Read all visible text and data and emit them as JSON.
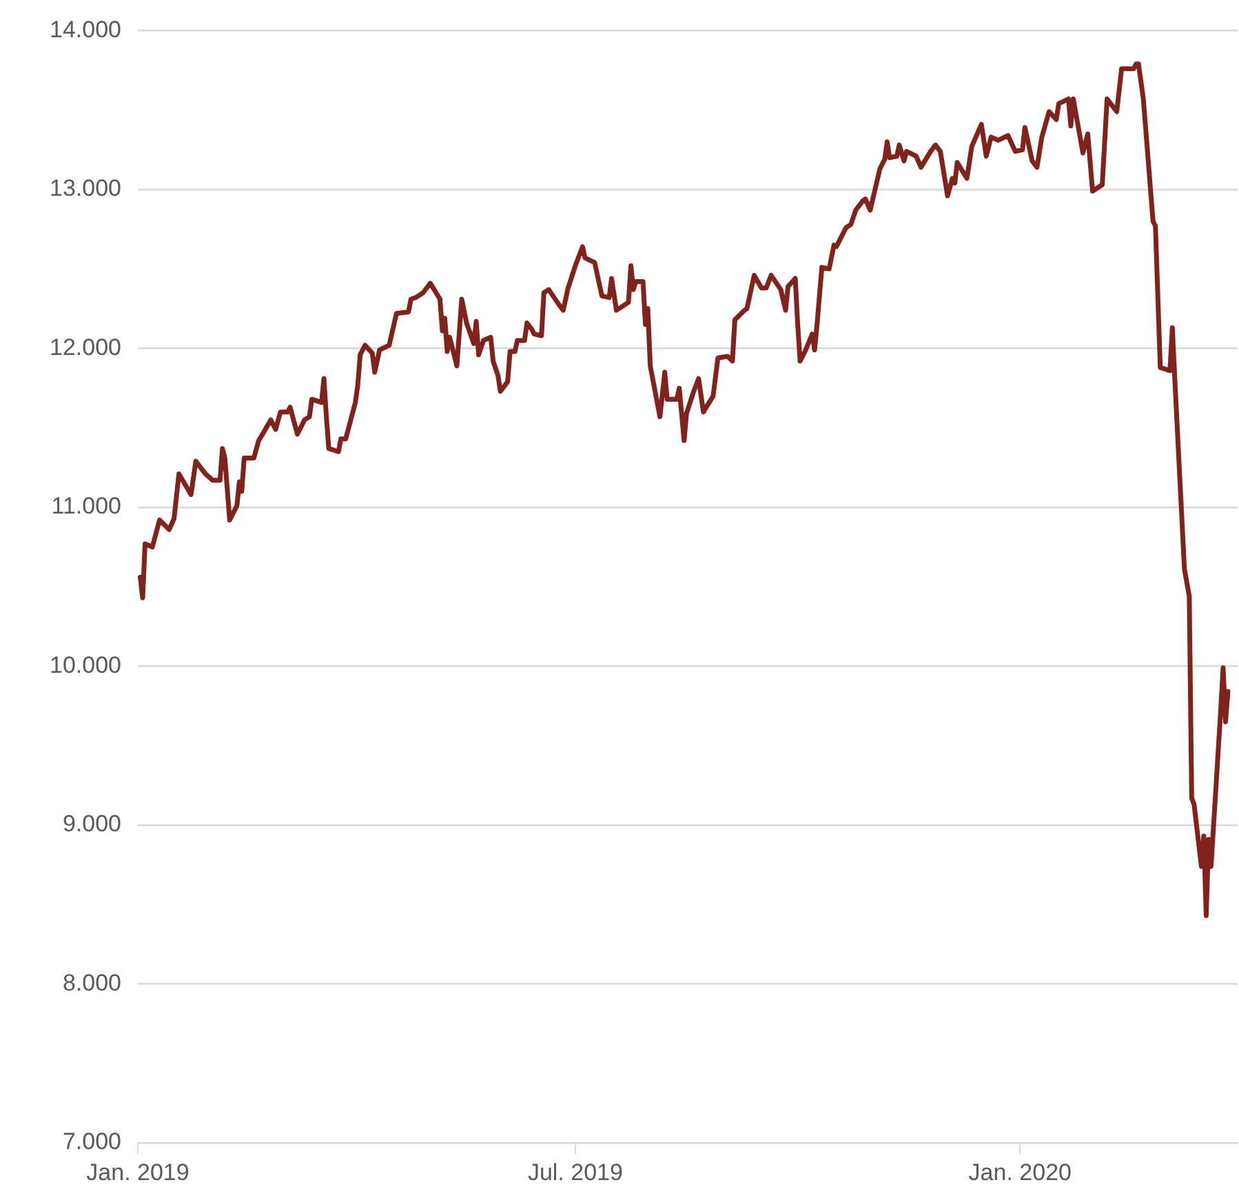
{
  "chart_data": {
    "type": "line",
    "x": [
      "2019-01-02",
      "2019-01-03",
      "2019-01-04",
      "2019-01-07",
      "2019-01-10",
      "2019-01-14",
      "2019-01-16",
      "2019-01-18",
      "2019-01-23",
      "2019-01-25",
      "2019-01-29",
      "2019-02-01",
      "2019-02-04",
      "2019-02-05",
      "2019-02-06",
      "2019-02-08",
      "2019-02-11",
      "2019-02-12",
      "2019-02-13",
      "2019-02-14",
      "2019-02-18",
      "2019-02-20",
      "2019-02-22",
      "2019-02-25",
      "2019-02-27",
      "2019-03-01",
      "2019-03-04",
      "2019-03-05",
      "2019-03-08",
      "2019-03-11",
      "2019-03-13",
      "2019-03-14",
      "2019-03-18",
      "2019-03-19",
      "2019-03-20",
      "2019-03-21",
      "2019-03-25",
      "2019-03-26",
      "2019-03-28",
      "2019-04-01",
      "2019-04-02",
      "2019-04-03",
      "2019-04-05",
      "2019-04-08",
      "2019-04-09",
      "2019-04-11",
      "2019-04-15",
      "2019-04-18",
      "2019-04-23",
      "2019-04-24",
      "2019-04-26",
      "2019-04-29",
      "2019-05-02",
      "2019-05-06",
      "2019-05-07",
      "2019-05-08",
      "2019-05-09",
      "2019-05-10",
      "2019-05-13",
      "2019-05-15",
      "2019-05-17",
      "2019-05-20",
      "2019-05-21",
      "2019-05-22",
      "2019-05-24",
      "2019-05-27",
      "2019-05-28",
      "2019-05-30",
      "2019-05-31",
      "2019-06-03",
      "2019-06-04",
      "2019-06-06",
      "2019-06-07",
      "2019-06-10",
      "2019-06-11",
      "2019-06-13",
      "2019-06-14",
      "2019-06-17",
      "2019-06-18",
      "2019-06-20",
      "2019-06-24",
      "2019-06-26",
      "2019-06-28",
      "2019-07-01",
      "2019-07-04",
      "2019-07-05",
      "2019-07-09",
      "2019-07-12",
      "2019-07-15",
      "2019-07-16",
      "2019-07-18",
      "2019-07-22",
      "2019-07-23",
      "2019-07-24",
      "2019-07-25",
      "2019-07-26",
      "2019-07-29",
      "2019-07-30",
      "2019-07-31",
      "2019-08-01",
      "2019-08-05",
      "2019-08-07",
      "2019-08-08",
      "2019-08-12",
      "2019-08-13",
      "2019-08-15",
      "2019-08-16",
      "2019-08-19",
      "2019-08-21",
      "2019-08-23",
      "2019-08-27",
      "2019-08-29",
      "2019-09-02",
      "2019-09-04",
      "2019-09-05",
      "2019-09-09",
      "2019-09-10",
      "2019-09-13",
      "2019-09-16",
      "2019-09-18",
      "2019-09-20",
      "2019-09-24",
      "2019-09-26",
      "2019-09-27",
      "2019-09-30",
      "2019-10-01",
      "2019-10-02",
      "2019-10-04",
      "2019-10-07",
      "2019-10-08",
      "2019-10-09",
      "2019-10-11",
      "2019-10-14",
      "2019-10-16",
      "2019-10-17",
      "2019-10-21",
      "2019-10-23",
      "2019-10-25",
      "2019-10-28",
      "2019-10-29",
      "2019-10-31",
      "2019-11-04",
      "2019-11-06",
      "2019-11-07",
      "2019-11-08",
      "2019-11-11",
      "2019-11-12",
      "2019-11-14",
      "2019-11-15",
      "2019-11-19",
      "2019-11-21",
      "2019-11-25",
      "2019-11-27",
      "2019-11-29",
      "2019-12-02",
      "2019-12-04",
      "2019-12-05",
      "2019-12-06",
      "2019-12-10",
      "2019-12-12",
      "2019-12-16",
      "2019-12-18",
      "2019-12-20",
      "2019-12-23",
      "2019-12-27",
      "2019-12-30",
      "2020-01-02",
      "2020-01-03",
      "2020-01-06",
      "2020-01-08",
      "2020-01-10",
      "2020-01-13",
      "2020-01-16",
      "2020-01-17",
      "2020-01-21",
      "2020-01-22",
      "2020-01-23",
      "2020-01-27",
      "2020-01-29",
      "2020-01-31",
      "2020-02-04",
      "2020-02-06",
      "2020-02-10",
      "2020-02-12",
      "2020-02-17",
      "2020-02-18",
      "2020-02-19",
      "2020-02-20",
      "2020-02-21",
      "2020-02-25",
      "2020-02-26",
      "2020-02-28",
      "2020-03-03",
      "2020-03-04",
      "2020-03-05",
      "2020-03-09",
      "2020-03-11",
      "2020-03-12",
      "2020-03-13",
      "2020-03-16",
      "2020-03-17",
      "2020-03-18",
      "2020-03-19",
      "2020-03-20",
      "2020-03-24",
      "2020-03-25",
      "2020-03-26",
      "2020-03-27"
    ],
    "series": [
      {
        "color": "#80231c",
        "values": [
          10560,
          10430,
          10770,
          10750,
          10920,
          10860,
          10930,
          11210,
          11080,
          11290,
          11210,
          11170,
          11170,
          11370,
          11310,
          10920,
          11010,
          11160,
          11100,
          11310,
          11310,
          11420,
          11470,
          11550,
          11490,
          11600,
          11600,
          11630,
          11460,
          11550,
          11570,
          11680,
          11660,
          11810,
          11570,
          11370,
          11350,
          11430,
          11430,
          11660,
          11770,
          11960,
          12020,
          11970,
          11850,
          11990,
          12020,
          12220,
          12230,
          12310,
          12320,
          12350,
          12410,
          12310,
          12110,
          12190,
          11980,
          12070,
          11890,
          12310,
          12160,
          12030,
          12170,
          11960,
          12050,
          12070,
          11920,
          11830,
          11730,
          11790,
          11980,
          11980,
          12050,
          12050,
          12160,
          12120,
          12090,
          12080,
          12350,
          12370,
          12280,
          12240,
          12380,
          12520,
          12640,
          12570,
          12540,
          12330,
          12320,
          12440,
          12240,
          12280,
          12290,
          12520,
          12370,
          12420,
          12420,
          12150,
          12250,
          11890,
          11570,
          11850,
          11680,
          11680,
          11750,
          11420,
          11590,
          11730,
          11810,
          11600,
          11700,
          11940,
          11950,
          11920,
          12180,
          12240,
          12250,
          12460,
          12380,
          12380,
          12460,
          12370,
          12240,
          12390,
          12440,
          12150,
          11920,
          11980,
          12090,
          11990,
          12150,
          12510,
          12500,
          12650,
          12640,
          12760,
          12780,
          12870,
          12930,
          12940,
          12870,
          13130,
          13190,
          13300,
          13200,
          13210,
          13280,
          13180,
          13240,
          13210,
          13140,
          13240,
          13280,
          13240,
          12960,
          13070,
          13040,
          13170,
          13070,
          13270,
          13410,
          13210,
          13330,
          13310,
          13340,
          13240,
          13250,
          13390,
          13180,
          13140,
          13330,
          13490,
          13440,
          13540,
          13570,
          13400,
          13570,
          13230,
          13350,
          12990,
          13030,
          13570,
          13490,
          13760,
          13760,
          13790,
          13790,
          13680,
          13570,
          12800,
          12770,
          11880,
          11860,
          12130,
          11810,
          10610,
          10440,
          9170,
          9130,
          8740,
          8930,
          8430,
          8910,
          8740,
          9720,
          9990,
          9650,
          9840
        ]
      }
    ],
    "xlim": [
      "2019-01-01",
      "2020-03-31"
    ],
    "xticks": [
      {
        "value": "2019-01-01",
        "label": "Jan. 2019"
      },
      {
        "value": "2019-07-01",
        "label": "Jul. 2019"
      },
      {
        "value": "2020-01-01",
        "label": "Jan. 2020"
      }
    ],
    "ylim": [
      7000,
      14000
    ],
    "yticks": [
      {
        "value": 7000,
        "label": "7.000"
      },
      {
        "value": 8000,
        "label": "8.000"
      },
      {
        "value": 9000,
        "label": "9.000"
      },
      {
        "value": 10000,
        "label": "10.000"
      },
      {
        "value": 11000,
        "label": "11.000"
      },
      {
        "value": 12000,
        "label": "12.000"
      },
      {
        "value": 13000,
        "label": "13.000"
      },
      {
        "value": 14000,
        "label": "14.000"
      }
    ],
    "grid": "y",
    "legend": false,
    "marker": "none",
    "line_style": "solid"
  }
}
